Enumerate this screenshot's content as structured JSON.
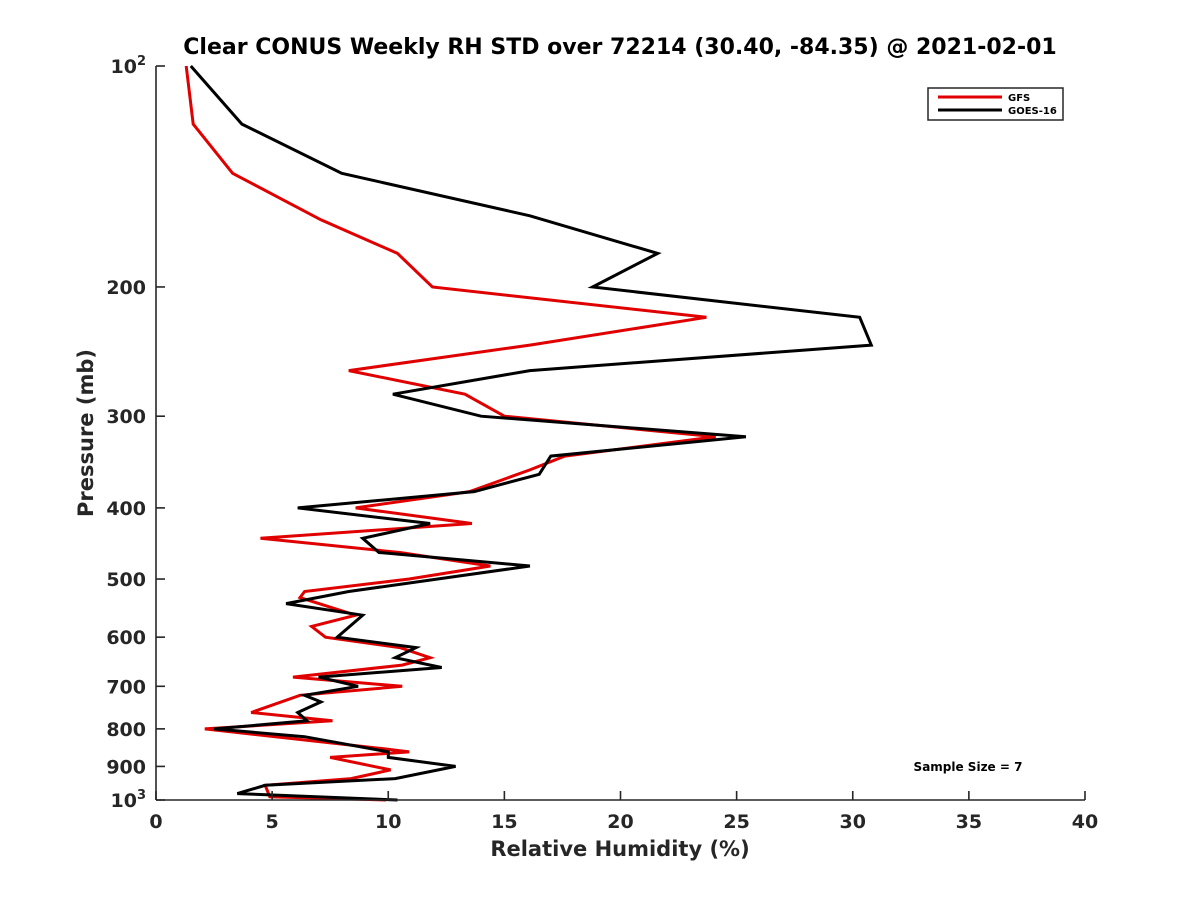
{
  "chart_data": {
    "type": "line",
    "orientation": "profile",
    "title": "Clear CONUS Weekly RH STD over 72214 (30.40, -84.35) @ 2021-02-01",
    "xlabel": "Relative Humidity (%)",
    "ylabel": "Pressure (mb)",
    "xlim": [
      0,
      40
    ],
    "ylim": [
      100,
      1000
    ],
    "yscale": "log",
    "yreversed": true,
    "grid": false,
    "xticks": [
      0,
      5,
      10,
      15,
      20,
      25,
      30,
      35,
      40
    ],
    "xtick_labels": [
      "0",
      "5",
      "10",
      "15",
      "20",
      "25",
      "30",
      "35",
      "40"
    ],
    "yticks": [
      100,
      200,
      300,
      400,
      500,
      600,
      700,
      800,
      900,
      1000
    ],
    "ytick_labels": [
      {
        "base": "10",
        "sup": "2"
      },
      {
        "base": "200",
        "sup": ""
      },
      {
        "base": "300",
        "sup": ""
      },
      {
        "base": "400",
        "sup": ""
      },
      {
        "base": "500",
        "sup": ""
      },
      {
        "base": "600",
        "sup": ""
      },
      {
        "base": "700",
        "sup": ""
      },
      {
        "base": "800",
        "sup": ""
      },
      {
        "base": "900",
        "sup": ""
      },
      {
        "base": "10",
        "sup": "3"
      }
    ],
    "legend": {
      "placement": "top-right",
      "entries": [
        "GFS",
        "GOES-16"
      ]
    },
    "annotation": "Sample Size = 7",
    "series": [
      {
        "name": "GFS",
        "color": "#e00000",
        "rh": [
          1.3,
          1.6,
          3.3,
          7.1,
          10.4,
          11.9,
          23.7,
          16.1,
          8.3,
          13.3,
          15.0,
          24.1,
          17.6,
          16.1,
          13.5,
          8.6,
          13.6,
          4.5,
          10.5,
          14.4,
          10.9,
          6.4,
          6.2,
          8.6,
          6.7,
          7.3,
          10.5,
          11.8,
          10.6,
          5.9,
          10.6,
          6.2,
          4.1,
          7.6,
          2.1,
          9.6,
          10.9,
          7.5,
          10.1,
          8.4,
          4.7,
          4.9,
          9.9
        ],
        "pressure": [
          100,
          120,
          140,
          162,
          180,
          200,
          220,
          240,
          260,
          280,
          300,
          320,
          340,
          355,
          380,
          400,
          420,
          440,
          460,
          480,
          500,
          520,
          530,
          560,
          580,
          600,
          620,
          640,
          655,
          680,
          700,
          720,
          760,
          780,
          800,
          850,
          860,
          875,
          910,
          935,
          955,
          990,
          1000
        ]
      },
      {
        "name": "GOES-16",
        "color": "#000000",
        "rh": [
          1.5,
          3.7,
          8.0,
          16.1,
          21.6,
          18.8,
          30.3,
          30.8,
          16.1,
          10.2,
          14.0,
          25.4,
          17.0,
          16.5,
          13.7,
          6.1,
          11.8,
          8.9,
          9.6,
          16.1,
          8.3,
          5.6,
          8.9,
          7.8,
          11.2,
          10.3,
          12.3,
          7.0,
          8.7,
          6.4,
          7.1,
          6.1,
          6.5,
          2.5,
          6.4,
          10.0,
          10.0,
          12.9,
          10.3,
          4.7,
          3.5,
          10.4
        ],
        "pressure": [
          100,
          120,
          140,
          160,
          180,
          200,
          220,
          240,
          260,
          280,
          300,
          320,
          340,
          360,
          380,
          400,
          420,
          440,
          460,
          480,
          520,
          540,
          560,
          600,
          620,
          640,
          660,
          680,
          700,
          720,
          735,
          760,
          780,
          800,
          820,
          860,
          875,
          900,
          935,
          955,
          980,
          1000
        ]
      }
    ]
  }
}
